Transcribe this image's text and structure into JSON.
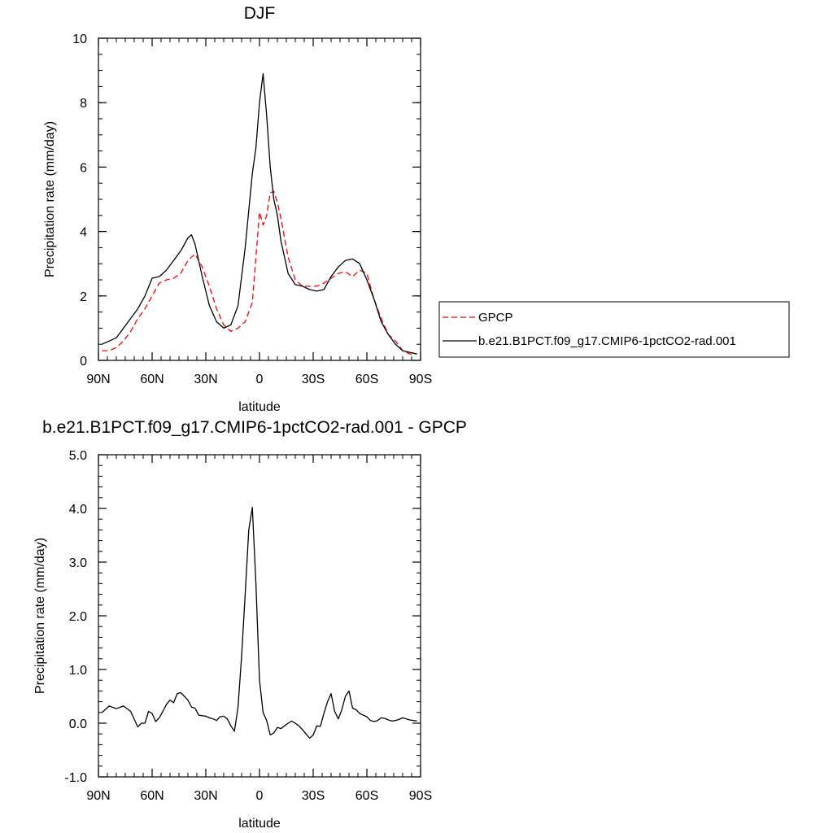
{
  "chart_data": [
    {
      "type": "line",
      "title": "DJF",
      "xlabel": "latitude",
      "ylabel": "Precipitation rate (mm/day)",
      "xlim": [
        90,
        -90
      ],
      "ylim": [
        0,
        10
      ],
      "x_ticks": [
        {
          "value": 90,
          "label": "90N"
        },
        {
          "value": 60,
          "label": "60N"
        },
        {
          "value": 30,
          "label": "30N"
        },
        {
          "value": 0,
          "label": "0"
        },
        {
          "value": -30,
          "label": "30S"
        },
        {
          "value": -60,
          "label": "60S"
        },
        {
          "value": -90,
          "label": "90S"
        }
      ],
      "y_ticks": [
        {
          "value": 0,
          "label": "0"
        },
        {
          "value": 2,
          "label": "2"
        },
        {
          "value": 4,
          "label": "4"
        },
        {
          "value": 6,
          "label": "6"
        },
        {
          "value": 8,
          "label": "8"
        },
        {
          "value": 10,
          "label": "10"
        }
      ],
      "y_minor_step": 0.5,
      "x_minor_step": 5,
      "grid": false,
      "legend": "right",
      "series": [
        {
          "name": "GPCP",
          "color": "#ff0000",
          "dash": "dashed",
          "x": [
            88,
            84,
            80,
            76,
            72,
            68,
            64,
            60,
            56,
            52,
            48,
            44,
            40,
            38,
            36,
            32,
            28,
            24,
            20,
            16,
            12,
            8,
            4,
            2,
            0,
            -2,
            -4,
            -6,
            -8,
            -10,
            -12,
            -16,
            -20,
            -24,
            -28,
            -32,
            -36,
            -40,
            -44,
            -48,
            -52,
            -56,
            -60,
            -64,
            -68,
            -72,
            -76,
            -80,
            -84,
            -88
          ],
          "y": [
            0.3,
            0.3,
            0.4,
            0.6,
            0.9,
            1.3,
            1.6,
            2.0,
            2.4,
            2.5,
            2.55,
            2.7,
            3.1,
            3.2,
            3.3,
            2.9,
            2.3,
            1.6,
            1.1,
            0.9,
            1.0,
            1.2,
            1.8,
            3.2,
            4.6,
            4.2,
            4.5,
            5.2,
            5.25,
            4.9,
            4.4,
            3.2,
            2.5,
            2.3,
            2.3,
            2.3,
            2.4,
            2.55,
            2.7,
            2.75,
            2.6,
            2.8,
            2.7,
            1.9,
            1.3,
            0.8,
            0.6,
            0.3,
            0.2,
            0.2
          ]
        },
        {
          "name": "b.e21.B1PCT.f09_g17.CMIP6-1pctCO2-rad.001",
          "color": "#000000",
          "dash": "solid",
          "x": [
            88,
            84,
            80,
            76,
            72,
            68,
            64,
            60,
            56,
            52,
            48,
            44,
            40,
            38,
            36,
            32,
            28,
            24,
            20,
            16,
            12,
            8,
            4,
            2,
            0,
            -2,
            -4,
            -6,
            -8,
            -10,
            -12,
            -16,
            -20,
            -24,
            -28,
            -32,
            -36,
            -40,
            -44,
            -48,
            -52,
            -56,
            -60,
            -64,
            -68,
            -72,
            -76,
            -80,
            -84,
            -88
          ],
          "y": [
            0.5,
            0.6,
            0.7,
            1.0,
            1.3,
            1.6,
            2.0,
            2.55,
            2.6,
            2.8,
            3.1,
            3.4,
            3.8,
            3.9,
            3.6,
            2.6,
            1.7,
            1.2,
            1.0,
            1.1,
            1.7,
            3.5,
            5.8,
            6.6,
            8.0,
            8.9,
            7.6,
            6.0,
            5.0,
            4.5,
            3.7,
            2.7,
            2.35,
            2.3,
            2.2,
            2.15,
            2.2,
            2.6,
            2.9,
            3.1,
            3.15,
            3.0,
            2.5,
            1.9,
            1.2,
            0.8,
            0.5,
            0.3,
            0.25,
            0.2
          ]
        }
      ]
    },
    {
      "type": "line",
      "title": "b.e21.B1PCT.f09_g17.CMIP6-1pctCO2-rad.001 - GPCP",
      "xlabel": "latitude",
      "ylabel": "Precipitation rate (mm/day)",
      "xlim": [
        90,
        -90
      ],
      "ylim": [
        -1,
        5
      ],
      "x_ticks": [
        {
          "value": 90,
          "label": "90N"
        },
        {
          "value": 60,
          "label": "60N"
        },
        {
          "value": 30,
          "label": "30N"
        },
        {
          "value": 0,
          "label": "0"
        },
        {
          "value": -30,
          "label": "30S"
        },
        {
          "value": -60,
          "label": "60S"
        },
        {
          "value": -90,
          "label": "90S"
        }
      ],
      "y_ticks": [
        {
          "value": -1,
          "label": "-1.0"
        },
        {
          "value": 0,
          "label": "0.0"
        },
        {
          "value": 1,
          "label": "1.0"
        },
        {
          "value": 2,
          "label": "2.0"
        },
        {
          "value": 3,
          "label": "3.0"
        },
        {
          "value": 4,
          "label": "4.0"
        },
        {
          "value": 5,
          "label": "5.0"
        }
      ],
      "y_minor_step": 0.2,
      "x_minor_step": 5,
      "grid": false,
      "legend": "none",
      "series": [
        {
          "color": "#000000",
          "dash": "solid",
          "x": [
            88,
            84,
            80,
            76,
            72,
            68,
            66,
            64,
            62,
            60,
            58,
            56,
            54,
            52,
            50,
            48,
            46,
            44,
            42,
            40,
            38,
            36,
            34,
            32,
            30,
            28,
            26,
            24,
            22,
            20,
            18,
            16,
            14,
            12,
            10,
            8,
            6,
            4,
            2,
            0,
            -2,
            -4,
            -6,
            -8,
            -10,
            -12,
            -14,
            -16,
            -18,
            -20,
            -22,
            -24,
            -26,
            -28,
            -30,
            -32,
            -34,
            -36,
            -38,
            -40,
            -42,
            -44,
            -46,
            -48,
            -50,
            -52,
            -54,
            -56,
            -58,
            -60,
            -62,
            -64,
            -66,
            -68,
            -70,
            -72,
            -74,
            -76,
            -78,
            -80,
            -82,
            -84,
            -86,
            -88
          ],
          "x_note": "",
          "y": [
            0.2,
            0.32,
            0.27,
            0.32,
            0.22,
            -0.07,
            0.0,
            0.0,
            0.22,
            0.18,
            0.03,
            0.1,
            0.22,
            0.35,
            0.43,
            0.38,
            0.55,
            0.57,
            0.5,
            0.43,
            0.3,
            0.28,
            0.15,
            0.14,
            0.13,
            0.1,
            0.08,
            0.05,
            0.12,
            0.13,
            0.08,
            -0.05,
            -0.15,
            0.3,
            1.25,
            2.4,
            3.6,
            4.02,
            2.6,
            0.8,
            0.2,
            0.05,
            -0.22,
            -0.18,
            -0.08,
            -0.1,
            -0.05,
            0.0,
            0.04,
            0.0,
            -0.05,
            -0.12,
            -0.2,
            -0.28,
            -0.22,
            -0.05,
            -0.06,
            0.18,
            0.4,
            0.55,
            0.22,
            0.08,
            0.25,
            0.5,
            0.6,
            0.28,
            0.25,
            0.18,
            0.15,
            0.12,
            0.05,
            0.03,
            0.05,
            0.1,
            0.09,
            0.06,
            0.04,
            0.05,
            0.07,
            0.1,
            0.08,
            0.06,
            0.05,
            0.04
          ],
          "y_note": ""
        }
      ]
    }
  ]
}
